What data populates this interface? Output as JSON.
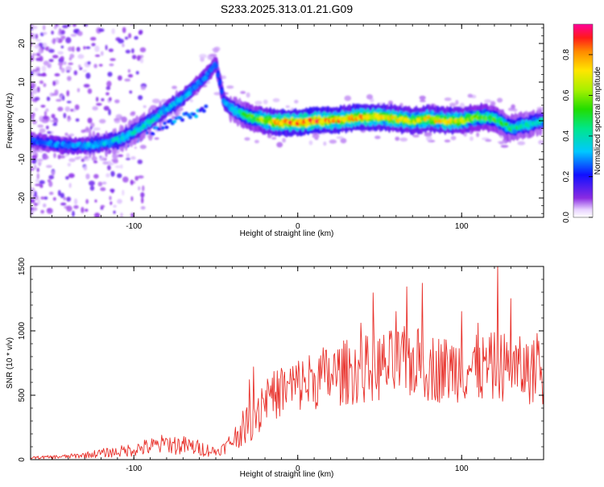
{
  "chart_data": [
    {
      "type": "heatmap",
      "title": "S233.2025.313.01.21.G09",
      "xlabel": "Height of straight line (km)",
      "ylabel": "Frequency (Hz)",
      "xlim": [
        -163,
        150
      ],
      "ylim": [
        -25,
        25
      ],
      "x_ticks": [
        -100,
        0,
        100
      ],
      "y_ticks": [
        -20,
        -10,
        0,
        10,
        20
      ],
      "colorbar": {
        "label": "Normalized spectral amplitude",
        "range": [
          0.0,
          0.95
        ],
        "ticks": [
          0.0,
          0.2,
          0.4,
          0.6,
          0.8
        ]
      },
      "ridge": {
        "x": [
          -163,
          -150,
          -140,
          -130,
          -120,
          -110,
          -100,
          -90,
          -80,
          -70,
          -60,
          -55,
          -50,
          -45,
          -40,
          -35,
          -30,
          -25,
          -20,
          -10,
          0,
          10,
          20,
          30,
          40,
          50,
          60,
          70,
          80,
          90,
          100,
          110,
          120,
          130,
          140,
          150
        ],
        "y": [
          -5,
          -6,
          -6.5,
          -6.5,
          -6,
          -5,
          -3,
          0,
          3,
          6,
          10,
          12,
          15,
          5,
          3,
          2,
          1,
          0.5,
          0,
          -0.5,
          -0.5,
          0,
          0,
          0.5,
          1,
          1,
          0.5,
          0,
          0.5,
          0,
          0,
          1,
          0.5,
          -2,
          -1,
          0
        ],
        "peak": [
          0.25,
          0.3,
          0.3,
          0.35,
          0.35,
          0.4,
          0.4,
          0.4,
          0.35,
          0.35,
          0.3,
          0.3,
          0.25,
          0.3,
          0.4,
          0.45,
          0.55,
          0.6,
          0.7,
          0.85,
          0.9,
          0.9,
          0.85,
          0.8,
          0.85,
          0.8,
          0.75,
          0.7,
          0.75,
          0.75,
          0.7,
          0.6,
          0.55,
          0.5,
          0.45,
          0.4
        ]
      },
      "secondary_branch": {
        "x": [
          -110,
          -100,
          -90,
          -80,
          -70,
          -60,
          -55
        ],
        "y": [
          -7,
          -5,
          -3,
          -1,
          1,
          2,
          4
        ]
      }
    },
    {
      "type": "line",
      "xlabel": "Height of straight line (km)",
      "ylabel": "SNR (10 * v/v)",
      "xlim": [
        -163,
        150
      ],
      "ylim": [
        0,
        1500
      ],
      "x_ticks": [
        -100,
        0,
        100
      ],
      "y_ticks": [
        0,
        500,
        1000,
        1500
      ],
      "series": [
        {
          "name": "SNR",
          "color": "#e8302a",
          "x": [
            -163,
            -150,
            -140,
            -130,
            -120,
            -110,
            -100,
            -90,
            -80,
            -70,
            -60,
            -50,
            -45,
            -40,
            -35,
            -30,
            -25,
            -20,
            -15,
            -10,
            -5,
            0,
            5,
            10,
            15,
            20,
            30,
            40,
            50,
            60,
            70,
            75,
            80,
            90,
            100,
            110,
            120,
            122,
            130,
            140,
            150
          ],
          "y": [
            15,
            20,
            25,
            35,
            50,
            60,
            80,
            100,
            120,
            110,
            90,
            60,
            90,
            150,
            220,
            300,
            380,
            480,
            500,
            520,
            560,
            580,
            600,
            620,
            640,
            650,
            680,
            700,
            720,
            740,
            760,
            740,
            720,
            700,
            720,
            700,
            720,
            740,
            700,
            690,
            680
          ],
          "peaks": [
            {
              "x": -80,
              "y": 160
            },
            {
              "x": -27,
              "y": 720
            },
            {
              "x": 60,
              "y": 1150
            },
            {
              "x": 76,
              "y": 1370
            },
            {
              "x": 100,
              "y": 1150
            },
            {
              "x": 110,
              "y": 1060
            },
            {
              "x": 122,
              "y": 1520
            },
            {
              "x": 130,
              "y": 1250
            },
            {
              "x": 146,
              "y": 980
            }
          ]
        }
      ]
    }
  ]
}
